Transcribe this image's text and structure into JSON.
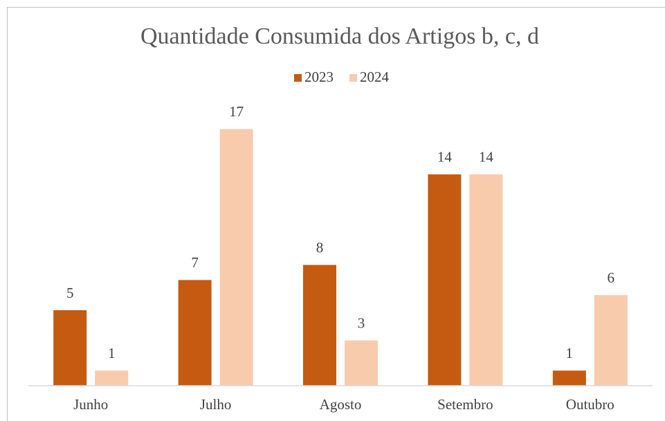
{
  "chart_data": {
    "type": "bar",
    "title": "Quantidade Consumida dos Artigos b, c, d",
    "categories": [
      "Junho",
      "Julho",
      "Agosto",
      "Setembro",
      "Outubro"
    ],
    "series": [
      {
        "name": "2023",
        "color": "#c55a11",
        "values": [
          5,
          7,
          8,
          14,
          1
        ]
      },
      {
        "name": "2024",
        "color": "#f8cbad",
        "values": [
          1,
          17,
          3,
          14,
          6
        ]
      }
    ],
    "ylim": [
      0,
      18
    ],
    "legend": "top"
  }
}
